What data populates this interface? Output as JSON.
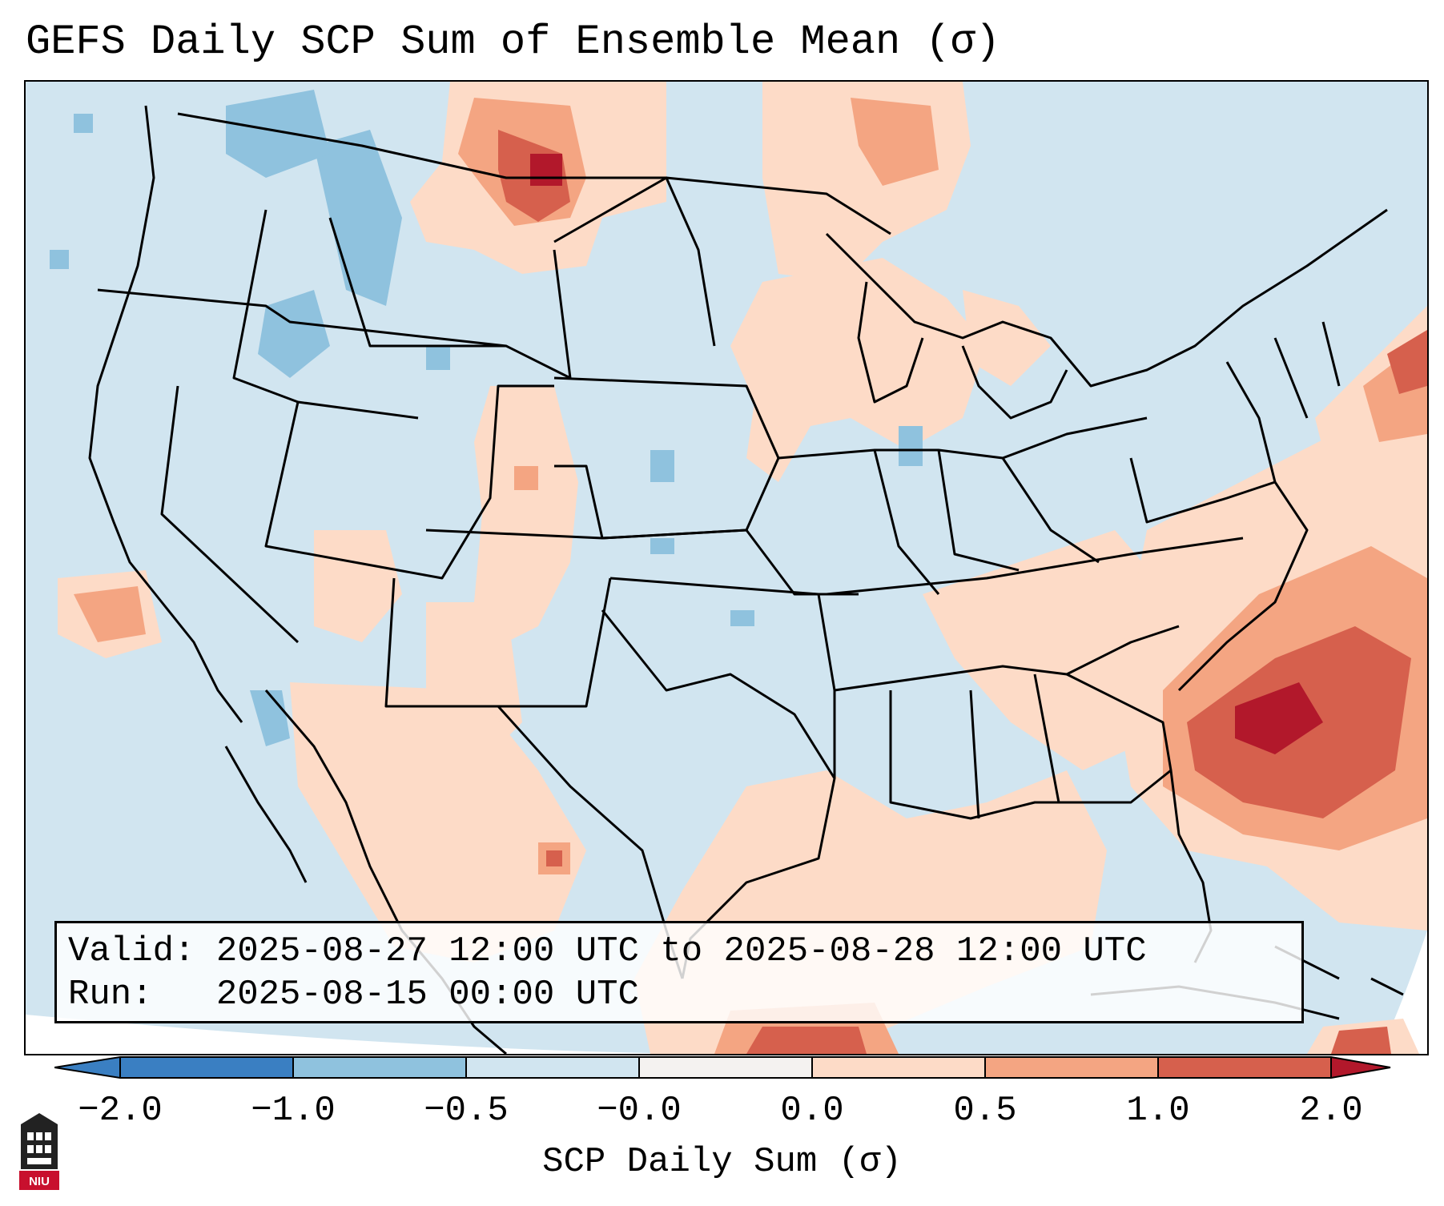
{
  "title": "GEFS Daily SCP Sum of Ensemble Mean (σ)",
  "valid_line": "Valid: 2025-08-27 12:00 UTC to 2025-08-28 12:00 UTC",
  "run_line": "Run:   2025-08-15 00:00 UTC",
  "colorbar": {
    "label": "SCP Daily Sum (σ)",
    "ticks": [
      "−2.0",
      "−1.0",
      "−0.5",
      "−0.0",
      "0.0",
      "0.5",
      "1.0",
      "2.0"
    ],
    "colors": [
      "#3a7fc2",
      "#8fc2de",
      "#d1e5f0",
      "#f4f2f0",
      "#fddbc7",
      "#f4a582",
      "#d6604d",
      "#b2182b"
    ]
  },
  "map": {
    "background_color": "#d1e5f0",
    "positive_color_light": "#fddbc7",
    "positive_color_mid": "#f4a582",
    "positive_color_strong": "#d6604d",
    "positive_color_max": "#b2182b",
    "negative_color": "#8fc2de"
  },
  "logo": {
    "text": "NIU",
    "color": "#c8102e"
  }
}
